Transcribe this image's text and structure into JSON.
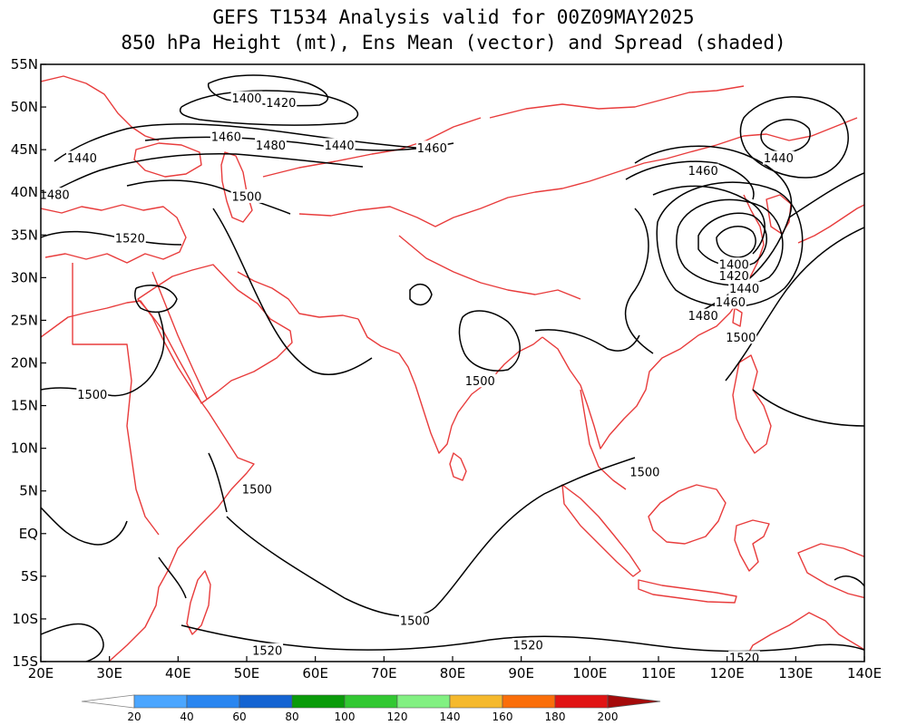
{
  "title_line1": "GEFS T1534 Analysis valid for 00Z09MAY2025",
  "title_line2": "850 hPa Height (mt), Ens Mean (vector) and Spread (shaded)",
  "lat_labels": [
    "55N",
    "50N",
    "45N",
    "40N",
    "35N",
    "30N",
    "25N",
    "20N",
    "15N",
    "10N",
    "5N",
    "EQ",
    "5S",
    "10S",
    "15S"
  ],
  "lon_labels": [
    "20E",
    "30E",
    "40E",
    "50E",
    "60E",
    "70E",
    "80E",
    "90E",
    "100E",
    "110E",
    "120E",
    "130E",
    "140E"
  ],
  "contour_labels": [
    {
      "text": "1400",
      "lon": 50,
      "lat": 51
    },
    {
      "text": "1420",
      "lon": 55,
      "lat": 50.5
    },
    {
      "text": "1460",
      "lon": 47,
      "lat": 46.5
    },
    {
      "text": "1480",
      "lon": 53.5,
      "lat": 45.5
    },
    {
      "text": "1440",
      "lon": 63.5,
      "lat": 45.5
    },
    {
      "text": "1460",
      "lon": 77,
      "lat": 45.2
    },
    {
      "text": "1440",
      "lon": 26,
      "lat": 44
    },
    {
      "text": "1480",
      "lon": 22,
      "lat": 39.7
    },
    {
      "text": "1500",
      "lon": 50,
      "lat": 39.5
    },
    {
      "text": "1520",
      "lon": 33,
      "lat": 34.6
    },
    {
      "text": "1460",
      "lon": 116.5,
      "lat": 42.5
    },
    {
      "text": "1440",
      "lon": 127.5,
      "lat": 44
    },
    {
      "text": "1400",
      "lon": 121,
      "lat": 31.5
    },
    {
      "text": "1420",
      "lon": 121,
      "lat": 30.2
    },
    {
      "text": "1440",
      "lon": 122.5,
      "lat": 28.7
    },
    {
      "text": "1460",
      "lon": 120.5,
      "lat": 27.1
    },
    {
      "text": "1480",
      "lon": 116.5,
      "lat": 25.5
    },
    {
      "text": "1500",
      "lon": 122,
      "lat": 23
    },
    {
      "text": "1500",
      "lon": 27.5,
      "lat": 16.3
    },
    {
      "text": "1500",
      "lon": 84,
      "lat": 17.9
    },
    {
      "text": "1500",
      "lon": 51.5,
      "lat": 5.2
    },
    {
      "text": "1500",
      "lon": 108,
      "lat": 7.2
    },
    {
      "text": "1500",
      "lon": 74.5,
      "lat": -10.2
    },
    {
      "text": "1520",
      "lon": 53,
      "lat": -13.7
    },
    {
      "text": "1520",
      "lon": 91,
      "lat": -13.1
    },
    {
      "text": "1520",
      "lon": 122.5,
      "lat": -14.6
    }
  ],
  "colorbar": {
    "ticks": [
      "20",
      "40",
      "60",
      "80",
      "100",
      "120",
      "140",
      "160",
      "180",
      "200"
    ],
    "colors": [
      "#ffffff",
      "#4ba6ff",
      "#2a86f0",
      "#1464d2",
      "#0a9b0a",
      "#32c832",
      "#82f082",
      "#f5b92d",
      "#fa6e0a",
      "#e11414",
      "#a50a0a"
    ]
  },
  "colors": {
    "coastline": "#e83c3c",
    "contour": "#000000"
  }
}
